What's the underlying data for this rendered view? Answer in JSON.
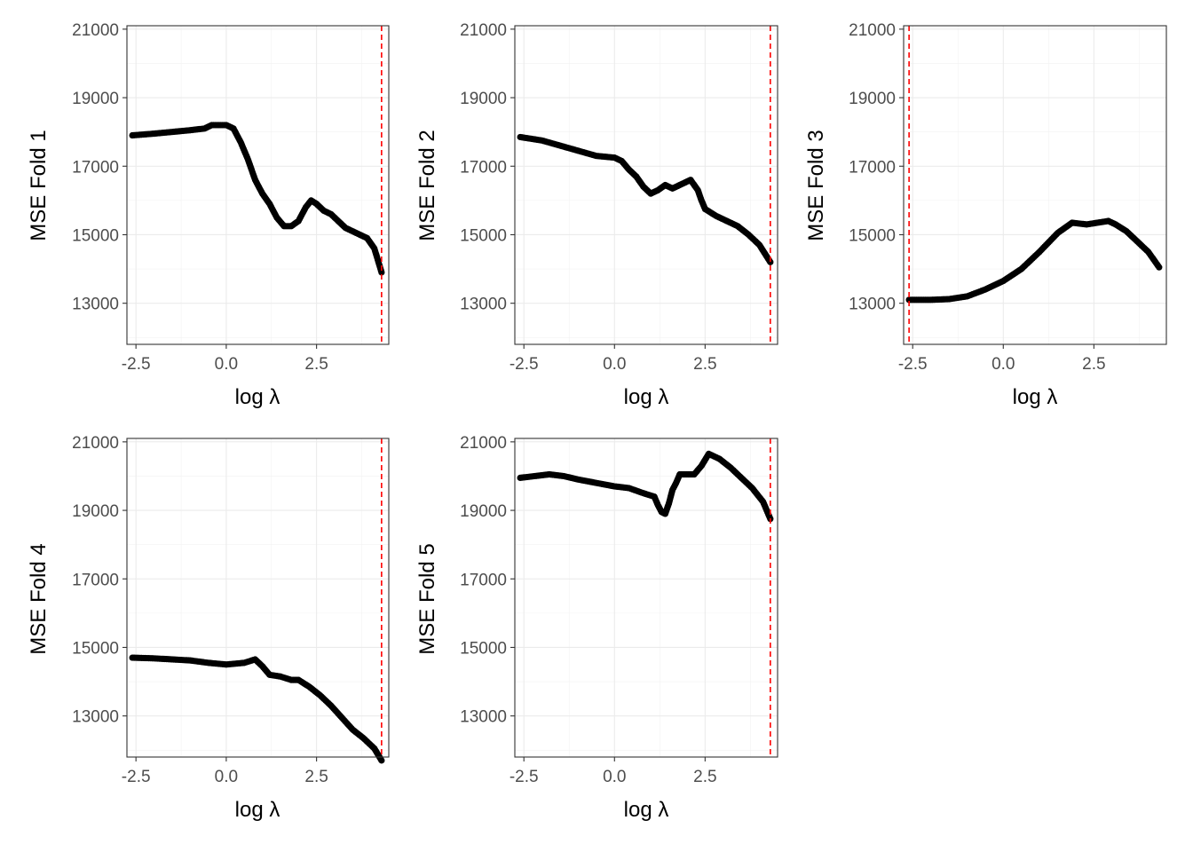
{
  "chart_data": [
    {
      "type": "scatter",
      "ylabel": "MSE Fold 1",
      "xlabel": "log λ",
      "xlim": [
        -2.75,
        4.5
      ],
      "ylim": [
        11800,
        21100
      ],
      "xticks": [
        -2.5,
        0.0,
        2.5
      ],
      "xtick_labels": [
        "-2.5",
        "0.0",
        "2.5"
      ],
      "yticks": [
        13000,
        15000,
        17000,
        19000,
        21000
      ],
      "ytick_labels": [
        "13000",
        "15000",
        "17000",
        "19000",
        "21000"
      ],
      "vline": 4.3,
      "grid": true,
      "points": [
        [
          -2.6,
          17900
        ],
        [
          -2.0,
          17950
        ],
        [
          -1.5,
          18000
        ],
        [
          -1.0,
          18050
        ],
        [
          -0.6,
          18100
        ],
        [
          -0.4,
          18200
        ],
        [
          0.0,
          18200
        ],
        [
          0.2,
          18100
        ],
        [
          0.4,
          17700
        ],
        [
          0.6,
          17200
        ],
        [
          0.8,
          16600
        ],
        [
          1.0,
          16200
        ],
        [
          1.2,
          15900
        ],
        [
          1.4,
          15500
        ],
        [
          1.6,
          15250
        ],
        [
          1.8,
          15250
        ],
        [
          2.0,
          15400
        ],
        [
          2.2,
          15800
        ],
        [
          2.35,
          16000
        ],
        [
          2.5,
          15900
        ],
        [
          2.7,
          15700
        ],
        [
          2.9,
          15600
        ],
        [
          3.1,
          15400
        ],
        [
          3.3,
          15200
        ],
        [
          3.6,
          15050
        ],
        [
          3.9,
          14900
        ],
        [
          4.1,
          14600
        ],
        [
          4.3,
          13900
        ]
      ]
    },
    {
      "type": "scatter",
      "ylabel": "MSE Fold 2",
      "xlabel": "log λ",
      "xlim": [
        -2.75,
        4.5
      ],
      "ylim": [
        11800,
        21100
      ],
      "xticks": [
        -2.5,
        0.0,
        2.5
      ],
      "xtick_labels": [
        "-2.5",
        "0.0",
        "2.5"
      ],
      "yticks": [
        13000,
        15000,
        17000,
        19000,
        21000
      ],
      "ytick_labels": [
        "13000",
        "15000",
        "17000",
        "19000",
        "21000"
      ],
      "vline": 4.3,
      "grid": true,
      "points": [
        [
          -2.6,
          17850
        ],
        [
          -2.0,
          17750
        ],
        [
          -1.5,
          17600
        ],
        [
          -1.0,
          17450
        ],
        [
          -0.5,
          17300
        ],
        [
          0.0,
          17250
        ],
        [
          0.2,
          17150
        ],
        [
          0.4,
          16900
        ],
        [
          0.6,
          16700
        ],
        [
          0.8,
          16400
        ],
        [
          1.0,
          16200
        ],
        [
          1.2,
          16300
        ],
        [
          1.4,
          16450
        ],
        [
          1.6,
          16350
        ],
        [
          1.8,
          16450
        ],
        [
          2.0,
          16550
        ],
        [
          2.1,
          16600
        ],
        [
          2.3,
          16300
        ],
        [
          2.4,
          16000
        ],
        [
          2.5,
          15750
        ],
        [
          2.8,
          15550
        ],
        [
          3.1,
          15400
        ],
        [
          3.4,
          15250
        ],
        [
          3.7,
          15000
        ],
        [
          4.0,
          14700
        ],
        [
          4.3,
          14200
        ]
      ]
    },
    {
      "type": "scatter",
      "ylabel": "MSE Fold 3",
      "xlabel": "log λ",
      "xlim": [
        -2.75,
        4.5
      ],
      "ylim": [
        11800,
        21100
      ],
      "xticks": [
        -2.5,
        0.0,
        2.5
      ],
      "xtick_labels": [
        "-2.5",
        "0.0",
        "2.5"
      ],
      "yticks": [
        13000,
        15000,
        17000,
        19000,
        21000
      ],
      "ytick_labels": [
        "13000",
        "15000",
        "17000",
        "19000",
        "21000"
      ],
      "vline": -2.6,
      "grid": true,
      "points": [
        [
          -2.6,
          13100
        ],
        [
          -2.0,
          13100
        ],
        [
          -1.5,
          13120
        ],
        [
          -1.0,
          13200
        ],
        [
          -0.5,
          13400
        ],
        [
          0.0,
          13650
        ],
        [
          0.5,
          14000
        ],
        [
          1.0,
          14500
        ],
        [
          1.5,
          15050
        ],
        [
          1.9,
          15350
        ],
        [
          2.3,
          15300
        ],
        [
          2.6,
          15350
        ],
        [
          2.9,
          15400
        ],
        [
          3.1,
          15300
        ],
        [
          3.4,
          15100
        ],
        [
          3.7,
          14800
        ],
        [
          4.0,
          14500
        ],
        [
          4.3,
          14050
        ]
      ]
    },
    {
      "type": "scatter",
      "ylabel": "MSE Fold 4",
      "xlabel": "log λ",
      "xlim": [
        -2.75,
        4.5
      ],
      "ylim": [
        11800,
        21100
      ],
      "xticks": [
        -2.5,
        0.0,
        2.5
      ],
      "xtick_labels": [
        "-2.5",
        "0.0",
        "2.5"
      ],
      "yticks": [
        13000,
        15000,
        17000,
        19000,
        21000
      ],
      "ytick_labels": [
        "13000",
        "15000",
        "17000",
        "19000",
        "21000"
      ],
      "vline": 4.3,
      "grid": true,
      "points": [
        [
          -2.6,
          14700
        ],
        [
          -2.0,
          14680
        ],
        [
          -1.5,
          14650
        ],
        [
          -1.0,
          14620
        ],
        [
          -0.5,
          14550
        ],
        [
          0.0,
          14500
        ],
        [
          0.5,
          14550
        ],
        [
          0.8,
          14650
        ],
        [
          1.0,
          14450
        ],
        [
          1.2,
          14200
        ],
        [
          1.5,
          14150
        ],
        [
          1.8,
          14050
        ],
        [
          2.0,
          14050
        ],
        [
          2.3,
          13850
        ],
        [
          2.6,
          13600
        ],
        [
          2.9,
          13300
        ],
        [
          3.2,
          12950
        ],
        [
          3.5,
          12600
        ],
        [
          3.8,
          12350
        ],
        [
          4.1,
          12050
        ],
        [
          4.3,
          11700
        ]
      ]
    },
    {
      "type": "scatter",
      "ylabel": "MSE Fold 5",
      "xlabel": "log λ",
      "xlim": [
        -2.75,
        4.5
      ],
      "ylim": [
        11800,
        21100
      ],
      "xticks": [
        -2.5,
        0.0,
        2.5
      ],
      "xtick_labels": [
        "-2.5",
        "0.0",
        "2.5"
      ],
      "yticks": [
        13000,
        15000,
        17000,
        19000,
        21000
      ],
      "ytick_labels": [
        "13000",
        "15000",
        "17000",
        "19000",
        "21000"
      ],
      "vline": 4.3,
      "grid": true,
      "points": [
        [
          -2.6,
          19950
        ],
        [
          -2.2,
          20000
        ],
        [
          -1.8,
          20050
        ],
        [
          -1.4,
          20000
        ],
        [
          -1.0,
          19900
        ],
        [
          -0.5,
          19800
        ],
        [
          0.0,
          19700
        ],
        [
          0.4,
          19650
        ],
        [
          0.8,
          19500
        ],
        [
          1.1,
          19400
        ],
        [
          1.2,
          19150
        ],
        [
          1.3,
          18950
        ],
        [
          1.4,
          18900
        ],
        [
          1.5,
          19200
        ],
        [
          1.6,
          19600
        ],
        [
          1.7,
          19800
        ],
        [
          1.8,
          20050
        ],
        [
          2.0,
          20050
        ],
        [
          2.2,
          20050
        ],
        [
          2.4,
          20300
        ],
        [
          2.6,
          20650
        ],
        [
          2.9,
          20500
        ],
        [
          3.2,
          20250
        ],
        [
          3.5,
          19950
        ],
        [
          3.8,
          19650
        ],
        [
          4.1,
          19250
        ],
        [
          4.3,
          18750
        ]
      ]
    }
  ]
}
